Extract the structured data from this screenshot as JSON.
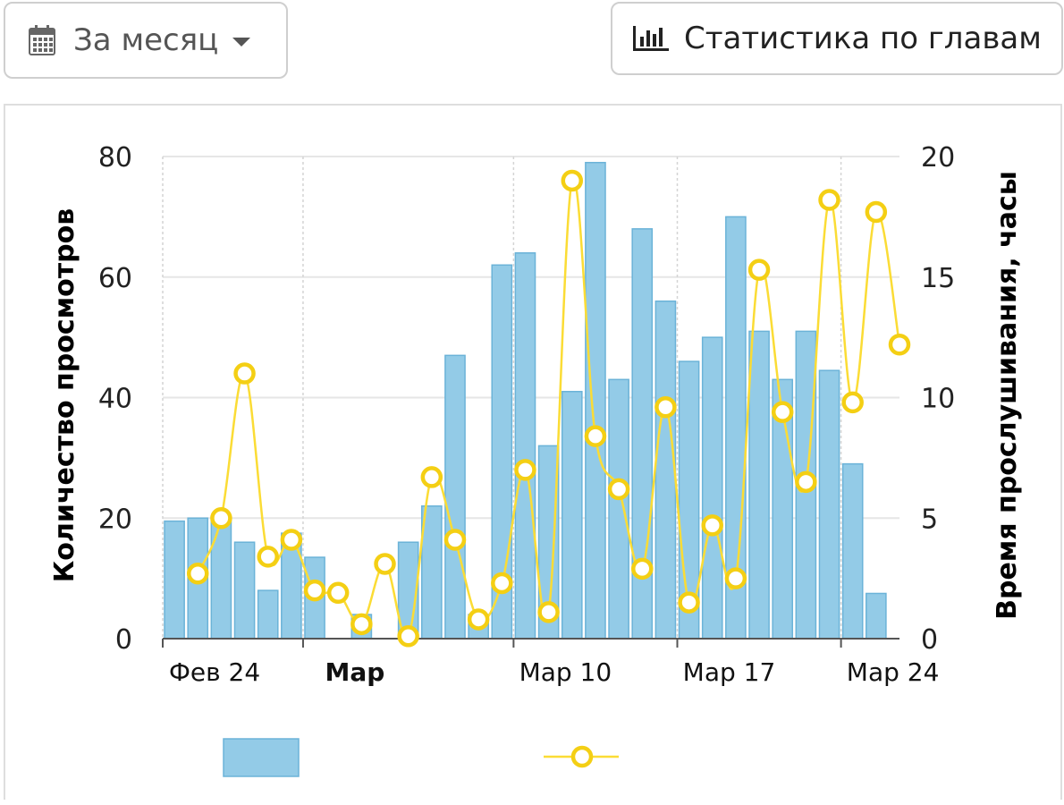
{
  "toolbar": {
    "period_icon": "calendar-icon",
    "period_label": "За месяц",
    "period_caret_icon": "caret-down-icon",
    "chapters_icon": "bar-chart-icon",
    "chapters_label": "Статистика по главам"
  },
  "colors": {
    "bars": "#93cbe7",
    "bars_stroke": "#6bb3d8",
    "line": "#fbdc35",
    "marker_stroke": "#f4cf14"
  },
  "chart_data": {
    "type": "bar",
    "x": [
      "2024-02-24",
      "2024-02-25",
      "2024-02-26",
      "2024-02-27",
      "2024-02-28",
      "2024-02-29",
      "2024-03-01",
      "2024-03-02",
      "2024-03-03",
      "2024-03-04",
      "2024-03-05",
      "2024-03-06",
      "2024-03-07",
      "2024-03-08",
      "2024-03-09",
      "2024-03-10",
      "2024-03-11",
      "2024-03-12",
      "2024-03-13",
      "2024-03-14",
      "2024-03-15",
      "2024-03-16",
      "2024-03-17",
      "2024-03-18",
      "2024-03-19",
      "2024-03-20",
      "2024-03-21",
      "2024-03-22",
      "2024-03-23",
      "2024-03-24",
      "2024-03-25",
      "2024-03-26"
    ],
    "xticks": [
      {
        "date": "2024-02-24",
        "label": "Фев 24",
        "bold": false
      },
      {
        "date": "2024-03-01",
        "label": "Мар",
        "bold": true
      },
      {
        "date": "2024-03-10",
        "label": "Мар 10",
        "bold": false
      },
      {
        "date": "2024-03-17",
        "label": "Мар 17",
        "bold": false
      },
      {
        "date": "2024-03-24",
        "label": "Мар 24",
        "bold": false
      }
    ],
    "series": [
      {
        "axis": "left",
        "kind": "bar",
        "values": [
          19.5,
          20,
          20,
          16,
          8,
          17.5,
          13.5,
          0,
          4,
          0,
          16,
          22,
          47,
          4,
          62,
          64,
          32,
          41,
          79,
          43,
          68,
          56,
          46,
          50,
          70,
          51,
          43,
          51,
          44.5,
          29,
          7.5,
          null
        ]
      },
      {
        "axis": "right",
        "kind": "line",
        "values": [
          null,
          2.7,
          5,
          11,
          3.4,
          4.1,
          2,
          1.9,
          0.6,
          3.1,
          0.1,
          6.7,
          4.1,
          0.8,
          2.3,
          7,
          1.1,
          19,
          8.4,
          6.2,
          2.9,
          9.6,
          1.5,
          4.7,
          2.5,
          15.3,
          9.4,
          6.5,
          18.2,
          9.8,
          17.7,
          12.2
        ]
      }
    ],
    "ylabel": "Количество просмотров",
    "y2label": "Время прослушивания, часы",
    "ylim": [
      0,
      80
    ],
    "yticks": [
      0,
      20,
      40,
      60,
      80
    ],
    "y2lim": [
      0,
      20
    ],
    "y2ticks": [
      0,
      5,
      10,
      15,
      20
    ],
    "grid": true,
    "legend": "bottom"
  }
}
